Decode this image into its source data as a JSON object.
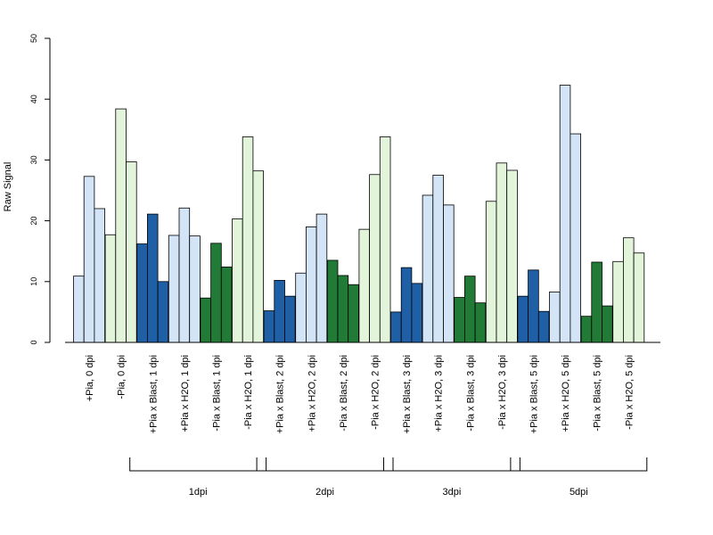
{
  "chart_data": {
    "type": "bar",
    "title": "",
    "xlabel": "",
    "ylabel": "Raw Signal",
    "ylim": [
      0,
      50
    ],
    "yticks": [
      0,
      10,
      20,
      30,
      40,
      50
    ],
    "grid": false,
    "legend": "none",
    "colors": {
      "light_blue": "#d4e4f7",
      "light_green": "#e2f5da",
      "dark_blue": "#1f5fa6",
      "dark_green": "#217a35"
    },
    "categories": [
      {
        "label": "+Pia, 0 dpi",
        "color": "light_blue",
        "values": [
          10.9,
          27.3,
          22.0
        ]
      },
      {
        "label": "-Pia, 0 dpi",
        "color": "light_green",
        "values": [
          17.7,
          38.4,
          29.7
        ]
      },
      {
        "label": "+Pia x Blast, 1 dpi",
        "color": "dark_blue",
        "values": [
          16.2,
          21.1,
          10.0
        ]
      },
      {
        "label": "+Pia x H2O, 1 dpi",
        "color": "light_blue",
        "values": [
          17.6,
          22.1,
          17.5
        ]
      },
      {
        "label": "-Pia x Blast, 1 dpi",
        "color": "dark_green",
        "values": [
          7.3,
          16.3,
          12.4
        ]
      },
      {
        "label": "-Pia x H2O, 1 dpi",
        "color": "light_green",
        "values": [
          20.3,
          33.8,
          28.2
        ]
      },
      {
        "label": "+Pia x Blast, 2 dpi",
        "color": "dark_blue",
        "values": [
          5.2,
          10.2,
          7.6
        ]
      },
      {
        "label": "+Pia x H2O, 2 dpi",
        "color": "light_blue",
        "values": [
          11.4,
          19.0,
          21.1
        ]
      },
      {
        "label": "-Pia x Blast, 2 dpi",
        "color": "dark_green",
        "values": [
          13.5,
          11.0,
          9.5
        ]
      },
      {
        "label": "-Pia x H2O, 2 dpi",
        "color": "light_green",
        "values": [
          18.6,
          27.6,
          33.8
        ]
      },
      {
        "label": "+Pia x Blast, 3 dpi",
        "color": "dark_blue",
        "values": [
          5.0,
          12.3,
          9.7
        ]
      },
      {
        "label": "+Pia x H2O, 3 dpi",
        "color": "light_blue",
        "values": [
          24.2,
          27.5,
          22.6
        ]
      },
      {
        "label": "-Pia x Blast, 3 dpi",
        "color": "dark_green",
        "values": [
          7.4,
          10.9,
          6.5
        ]
      },
      {
        "label": "-Pia x H2O, 3 dpi",
        "color": "light_green",
        "values": [
          23.2,
          29.5,
          28.3
        ]
      },
      {
        "label": "+Pia x Blast, 5 dpi",
        "color": "dark_blue",
        "values": [
          7.6,
          11.9,
          5.1
        ]
      },
      {
        "label": "+Pia x H2O, 5 dpi",
        "color": "light_blue",
        "values": [
          8.3,
          42.3,
          34.3
        ]
      },
      {
        "label": "-Pia x Blast, 5 dpi",
        "color": "dark_green",
        "values": [
          4.3,
          13.2,
          6.0
        ]
      },
      {
        "label": "-Pia x H2O, 5 dpi",
        "color": "light_green",
        "values": [
          13.3,
          17.2,
          14.7
        ]
      }
    ],
    "groups": [
      {
        "label": "1dpi",
        "from": 2,
        "to": 5
      },
      {
        "label": "2dpi",
        "from": 6,
        "to": 9
      },
      {
        "label": "3dpi",
        "from": 10,
        "to": 13
      },
      {
        "label": "5dpi",
        "from": 14,
        "to": 17
      }
    ]
  }
}
